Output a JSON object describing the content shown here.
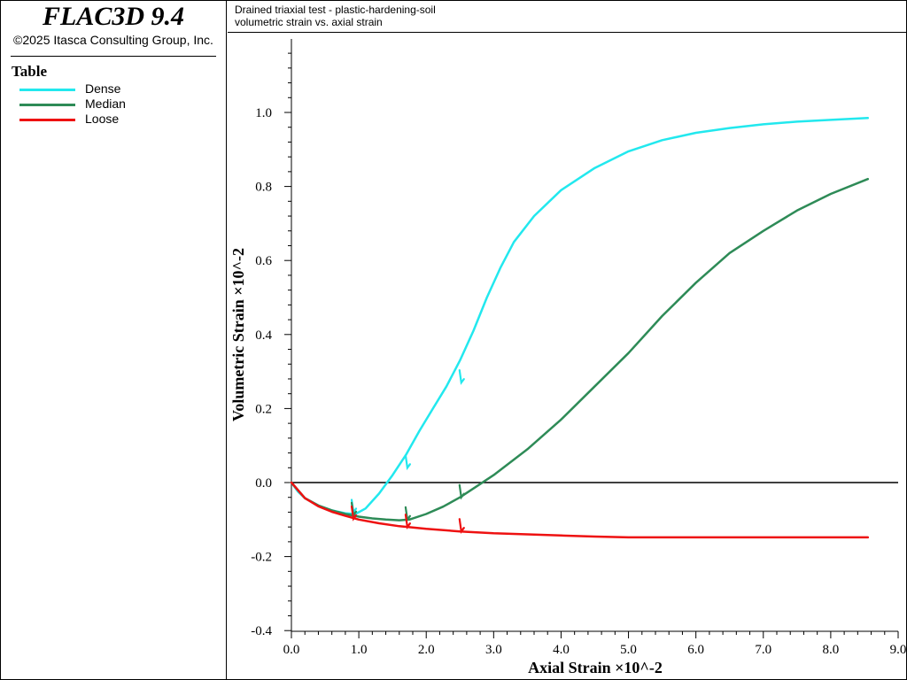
{
  "app": {
    "title": "FLAC3D 9.4",
    "copyright": "©2025 Itasca Consulting Group, Inc."
  },
  "legend": {
    "heading": "Table",
    "items": [
      {
        "label": "Dense",
        "color": "#22e8ee"
      },
      {
        "label": "Median",
        "color": "#2e8b57"
      },
      {
        "label": "Loose",
        "color": "#ee1111"
      }
    ]
  },
  "plot_header": {
    "line1": "Drained triaxial test - plastic-hardening-soil",
    "line2": "volumetric strain vs. axial strain"
  },
  "chart_data": {
    "type": "line",
    "title": "Drained triaxial test - plastic-hardening-soil",
    "subtitle": "volumetric strain vs. axial strain",
    "xlabel": "Axial Strain ×10^-2",
    "ylabel": "Volumetric Strain ×10^-2",
    "xlim": [
      0.0,
      9.0
    ],
    "ylim": [
      -0.4,
      1.2
    ],
    "x_ticks": [
      "0.0",
      "1.0",
      "2.0",
      "3.0",
      "4.0",
      "5.0",
      "6.0",
      "7.0",
      "8.0",
      "9.0"
    ],
    "y_ticks": [
      "-0.4",
      "-0.2",
      "0.0",
      "0.2",
      "0.4",
      "0.6",
      "0.8",
      "1.0"
    ],
    "y_tick_values": [
      -0.4,
      -0.2,
      0.0,
      0.2,
      0.4,
      0.6,
      0.8,
      1.0
    ],
    "grid": false,
    "zero_line": true,
    "legend_placement": "left-panel",
    "series": [
      {
        "name": "Dense",
        "color": "#22e8ee",
        "x": [
          0.0,
          0.1,
          0.2,
          0.4,
          0.6,
          0.8,
          0.95,
          1.1,
          1.3,
          1.5,
          1.7,
          1.9,
          2.1,
          2.3,
          2.5,
          2.7,
          2.9,
          3.1,
          3.3,
          3.6,
          4.0,
          4.5,
          5.0,
          5.5,
          6.0,
          6.5,
          7.0,
          7.5,
          8.0,
          8.55
        ],
        "y": [
          0.0,
          -0.025,
          -0.042,
          -0.062,
          -0.075,
          -0.083,
          -0.085,
          -0.07,
          -0.03,
          0.02,
          0.075,
          0.14,
          0.2,
          0.26,
          0.33,
          0.41,
          0.5,
          0.58,
          0.65,
          0.72,
          0.79,
          0.85,
          0.895,
          0.925,
          0.945,
          0.958,
          0.968,
          0.975,
          0.98,
          0.985
        ],
        "markers": [
          {
            "x": 0.92,
            "y": -0.08
          },
          {
            "x": 1.72,
            "y": 0.04
          },
          {
            "x": 2.52,
            "y": 0.27
          }
        ]
      },
      {
        "name": "Median",
        "color": "#2e8b57",
        "x": [
          0.0,
          0.2,
          0.4,
          0.6,
          0.8,
          1.0,
          1.2,
          1.4,
          1.6,
          1.75,
          2.0,
          2.25,
          2.5,
          2.75,
          3.0,
          3.5,
          4.0,
          4.5,
          5.0,
          5.5,
          6.0,
          6.5,
          7.0,
          7.5,
          8.0,
          8.55
        ],
        "y": [
          0.0,
          -0.042,
          -0.062,
          -0.075,
          -0.085,
          -0.092,
          -0.097,
          -0.1,
          -0.102,
          -0.1,
          -0.085,
          -0.065,
          -0.04,
          -0.01,
          0.02,
          0.09,
          0.17,
          0.26,
          0.35,
          0.45,
          0.54,
          0.62,
          0.68,
          0.735,
          0.78,
          0.82
        ],
        "markers": [
          {
            "x": 0.92,
            "y": -0.088
          },
          {
            "x": 1.72,
            "y": -0.1
          },
          {
            "x": 2.52,
            "y": -0.04
          }
        ]
      },
      {
        "name": "Loose",
        "color": "#ee1111",
        "x": [
          0.0,
          0.2,
          0.4,
          0.6,
          0.8,
          1.0,
          1.3,
          1.6,
          2.0,
          2.5,
          3.0,
          3.5,
          4.0,
          4.5,
          5.0,
          6.0,
          7.0,
          8.0,
          8.55
        ],
        "y": [
          0.0,
          -0.042,
          -0.064,
          -0.079,
          -0.09,
          -0.1,
          -0.11,
          -0.118,
          -0.125,
          -0.132,
          -0.137,
          -0.14,
          -0.143,
          -0.146,
          -0.148,
          -0.148,
          -0.148,
          -0.148,
          -0.148
        ],
        "markers": [
          {
            "x": 0.92,
            "y": -0.098
          },
          {
            "x": 1.72,
            "y": -0.12
          },
          {
            "x": 2.52,
            "y": -0.132
          }
        ]
      }
    ]
  }
}
